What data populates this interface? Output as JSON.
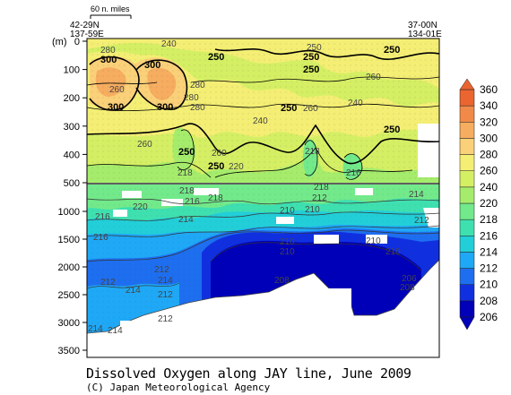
{
  "chart_data": {
    "type": "heatmap",
    "title": "Dissolved Oxygen along JAY line, June 2009",
    "credit": "(C) Japan Meteorological Agency",
    "y_unit_label": "(m)",
    "scale_bar_label": "60 n. miles",
    "left_station": {
      "lat": "42-29N",
      "lon": "137-59E"
    },
    "right_station": {
      "lat": "37-00N",
      "lon": "134-01E"
    },
    "upper_panel_ticks": [
      0,
      100,
      200,
      300,
      400,
      500
    ],
    "lower_panel_ticks": [
      1000,
      1500,
      2000,
      2500,
      3000,
      3500
    ],
    "colorbar_levels": [
      206,
      208,
      210,
      212,
      214,
      216,
      218,
      220,
      240,
      260,
      280,
      300,
      320,
      340,
      360
    ],
    "colorbar_colors": [
      "#0000b8",
      "#1030e0",
      "#1e6ef0",
      "#1fa8f5",
      "#22cfd8",
      "#3fe0b0",
      "#72e98a",
      "#a6ec6c",
      "#d5ef64",
      "#f4ee74",
      "#fad078",
      "#f6ad60",
      "#f18a48",
      "#ea6530"
    ],
    "contour_labels_bold": [
      "300",
      "300",
      "300",
      "300",
      "250",
      "250",
      "250",
      "250",
      "250",
      "250",
      "250",
      "250"
    ],
    "contour_labels_upper": [
      "280",
      "260",
      "240",
      "250",
      "280",
      "260",
      "280",
      "280",
      "240",
      "260",
      "240",
      "260",
      "220",
      "218",
      "218",
      "216",
      "260"
    ],
    "contour_labels_lower": [
      "218",
      "216",
      "218",
      "220",
      "216",
      "214",
      "212",
      "210",
      "210",
      "212",
      "218",
      "214",
      "210",
      "216",
      "210",
      "210",
      "210",
      "212",
      "212",
      "214",
      "212",
      "208",
      "214",
      "212",
      "206",
      "208",
      "214",
      "214"
    ]
  }
}
